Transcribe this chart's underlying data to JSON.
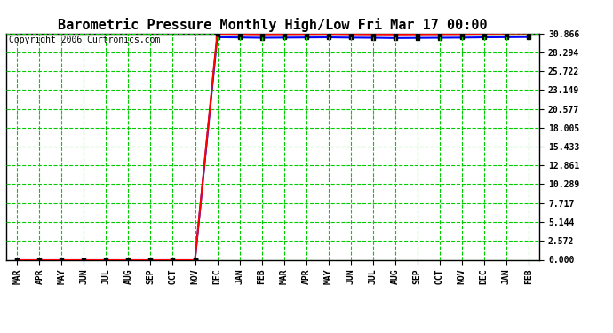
{
  "title": "Barometric Pressure Monthly High/Low Fri Mar 17 00:00",
  "copyright": "Copyright 2006 Curtronics.com",
  "x_labels": [
    "MAR",
    "APR",
    "MAY",
    "JUN",
    "JUL",
    "AUG",
    "SEP",
    "OCT",
    "NOV",
    "DEC",
    "JAN",
    "FEB",
    "MAR",
    "APR",
    "MAY",
    "JUN",
    "JUL",
    "AUG",
    "SEP",
    "OCT",
    "NOV",
    "DEC",
    "JAN",
    "FEB"
  ],
  "y_ticks": [
    0.0,
    2.572,
    5.144,
    7.717,
    10.289,
    12.861,
    15.433,
    18.005,
    20.577,
    23.149,
    25.722,
    28.294,
    30.866
  ],
  "y_max": 30.866,
  "y_min": 0.0,
  "num_points": 24,
  "transition_index": 8,
  "high_color": "#FF0000",
  "low_color": "#0000FF",
  "bg_color": "#FFFFFF",
  "plot_bg_color": "#FFFFFF",
  "grid_color": "#00CC00",
  "title_fontsize": 11,
  "copyright_fontsize": 7,
  "marker": "s",
  "marker_size": 3,
  "marker_color": "#000000",
  "line_width": 1.5,
  "high_full": [
    0.0,
    0.0,
    0.0,
    0.0,
    0.0,
    0.0,
    0.0,
    0.0,
    0.0,
    30.82,
    30.78,
    30.74,
    30.76,
    30.78,
    30.8,
    30.76,
    30.74,
    30.72,
    30.74,
    30.76,
    30.78,
    30.82,
    30.84,
    30.86
  ],
  "low_full": [
    0.0,
    0.0,
    0.0,
    0.0,
    0.0,
    0.0,
    0.0,
    0.0,
    0.0,
    30.34,
    30.3,
    30.26,
    30.28,
    30.3,
    30.32,
    30.28,
    30.26,
    30.22,
    30.24,
    30.26,
    30.28,
    30.32,
    30.34,
    30.36
  ]
}
